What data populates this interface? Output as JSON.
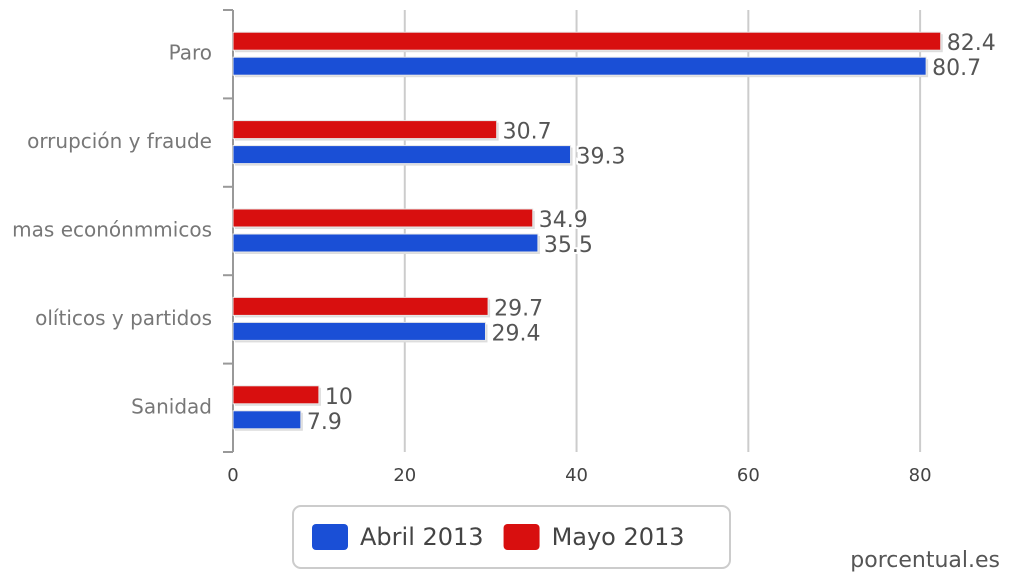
{
  "chart_data": {
    "type": "bar",
    "orientation": "horizontal",
    "categories": [
      "Paro",
      "orrupción y fraude",
      "mas econónmmicos",
      "olíticos y partidos",
      "Sanidad"
    ],
    "series": [
      {
        "name": "Abril 2013",
        "color": "#1a4fd6",
        "values": [
          80.7,
          39.3,
          35.5,
          29.4,
          7.9
        ]
      },
      {
        "name": "Mayo 2013",
        "color": "#d80f0f",
        "values": [
          82.4,
          30.7,
          34.9,
          29.7,
          10
        ]
      }
    ],
    "xlim": [
      0,
      90
    ],
    "xticks": [
      0,
      20,
      40,
      60,
      80
    ],
    "grid": true,
    "source": "porcentual.es"
  }
}
